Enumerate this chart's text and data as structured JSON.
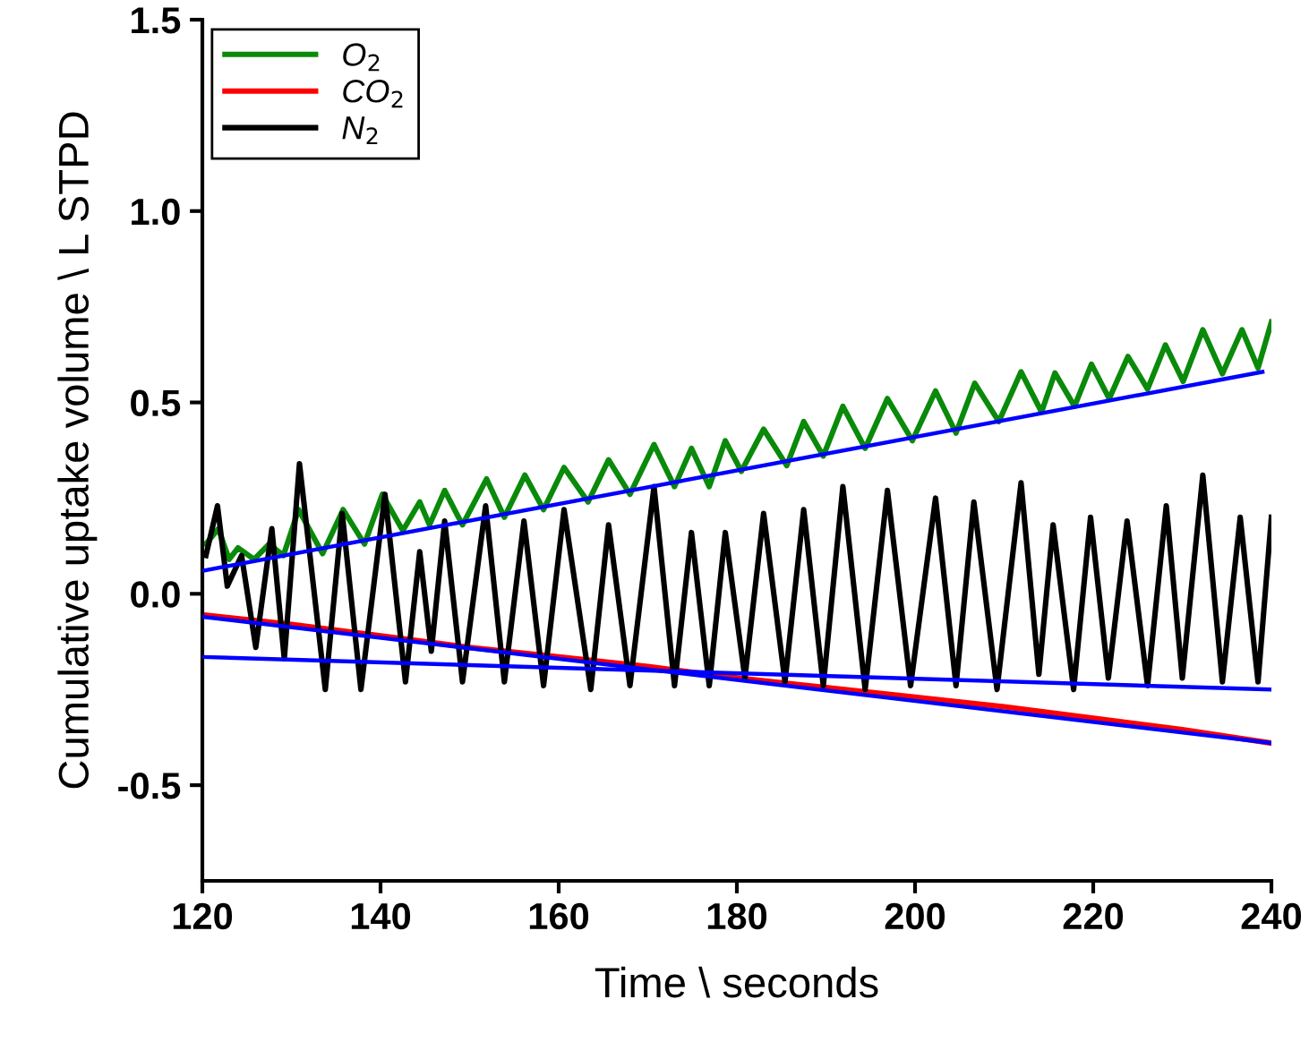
{
  "chart_data": {
    "type": "line",
    "xlabel": "Time \\ seconds",
    "ylabel": "Cumulative uptake volume \\ L STPD",
    "xlim": [
      120,
      240
    ],
    "ylim": [
      -0.75,
      1.5
    ],
    "xticks": [
      120,
      140,
      160,
      180,
      200,
      220,
      240
    ],
    "yticks": [
      {
        "value": -0.5,
        "label": "-0.5"
      },
      {
        "value": 0,
        "label": "0.0"
      },
      {
        "value": 0.5,
        "label": "0.5"
      },
      {
        "value": 1.0,
        "label": "1.0"
      },
      {
        "value": 1.5,
        "label": "1.5"
      }
    ],
    "grid": false,
    "legend": "top left",
    "line_style": "solid",
    "marker": "none",
    "series": [
      {
        "name": "O$_{2}$",
        "color": "#0a8a0a",
        "x": [
          120.4,
          121.8,
          123.0,
          124.0,
          125.8,
          127.5,
          129.1,
          130.8,
          133.5,
          135.8,
          138.2,
          140.2,
          142.5,
          144.4,
          145.5,
          147.2,
          149.2,
          151.9,
          153.9,
          156.2,
          158.3,
          160.6,
          163.3,
          165.6,
          168.0,
          170.7,
          173.0,
          174.9,
          176.9,
          178.7,
          180.5,
          183.0,
          185.6,
          187.5,
          189.7,
          191.9,
          194.4,
          196.9,
          199.7,
          202.3,
          204.6,
          206.7,
          209.4,
          211.9,
          214.2,
          215.7,
          217.9,
          219.8,
          221.8,
          223.9,
          226.1,
          228.1,
          230.1,
          232.3,
          234.5,
          236.7,
          238.5,
          240
        ],
        "values": [
          0.13,
          0.17,
          0.09,
          0.12,
          0.09,
          0.13,
          0.1,
          0.22,
          0.105,
          0.22,
          0.13,
          0.26,
          0.165,
          0.24,
          0.18,
          0.27,
          0.18,
          0.3,
          0.2,
          0.31,
          0.22,
          0.33,
          0.24,
          0.35,
          0.26,
          0.39,
          0.28,
          0.38,
          0.28,
          0.4,
          0.32,
          0.43,
          0.335,
          0.45,
          0.36,
          0.49,
          0.38,
          0.51,
          0.4,
          0.53,
          0.42,
          0.55,
          0.45,
          0.58,
          0.475,
          0.577,
          0.49,
          0.6,
          0.51,
          0.62,
          0.535,
          0.65,
          0.555,
          0.69,
          0.575,
          0.69,
          0.59,
          0.71
        ]
      },
      {
        "name": "CO$_{2}$",
        "color": "#ff0000",
        "x": [
          120,
          130,
          140,
          150,
          160,
          170,
          180,
          190,
          200,
          210,
          220,
          230,
          240
        ],
        "values": [
          -0.055,
          -0.08,
          -0.11,
          -0.14,
          -0.165,
          -0.19,
          -0.22,
          -0.245,
          -0.27,
          -0.295,
          -0.325,
          -0.355,
          -0.39
        ]
      },
      {
        "name": "N$_{2}$",
        "color": "#000000",
        "x": [
          120.4,
          121.7,
          122.8,
          124.4,
          126.0,
          127.8,
          129.2,
          130.9,
          133.8,
          135.7,
          137.8,
          140.5,
          142.8,
          144.4,
          145.7,
          147.2,
          149.2,
          151.8,
          153.9,
          156.1,
          158.3,
          160.6,
          163.6,
          165.6,
          168.0,
          170.7,
          173.0,
          174.9,
          176.9,
          178.7,
          180.9,
          183.0,
          185.4,
          187.5,
          189.7,
          191.9,
          194.4,
          196.9,
          199.5,
          202.3,
          204.6,
          206.6,
          209.2,
          211.9,
          213.9,
          215.5,
          217.8,
          219.7,
          221.7,
          223.8,
          226.1,
          228.2,
          230.0,
          232.3,
          234.5,
          236.5,
          238.5,
          240
        ],
        "values": [
          0.1,
          0.23,
          0.02,
          0.1,
          -0.14,
          0.17,
          -0.17,
          0.34,
          -0.25,
          0.21,
          -0.25,
          0.26,
          -0.23,
          0.11,
          -0.15,
          0.19,
          -0.23,
          0.23,
          -0.23,
          0.19,
          -0.24,
          0.22,
          -0.25,
          0.18,
          -0.24,
          0.28,
          -0.24,
          0.16,
          -0.24,
          0.16,
          -0.22,
          0.21,
          -0.23,
          0.22,
          -0.24,
          0.28,
          -0.25,
          0.27,
          -0.24,
          0.25,
          -0.24,
          0.24,
          -0.25,
          0.29,
          -0.21,
          0.18,
          -0.25,
          0.2,
          -0.22,
          0.19,
          -0.24,
          0.23,
          -0.22,
          0.31,
          -0.23,
          0.2,
          -0.23,
          0.2
        ]
      },
      {
        "color": "#0000ff",
        "x": [
          120,
          239
        ],
        "values": [
          0.06,
          0.58
        ]
      },
      {
        "color": "#0000ff",
        "x": [
          120,
          240
        ],
        "values": [
          -0.06,
          -0.39
        ]
      },
      {
        "color": "#0000ff",
        "x": [
          120,
          240
        ],
        "values": [
          -0.165,
          -0.25
        ]
      }
    ]
  }
}
